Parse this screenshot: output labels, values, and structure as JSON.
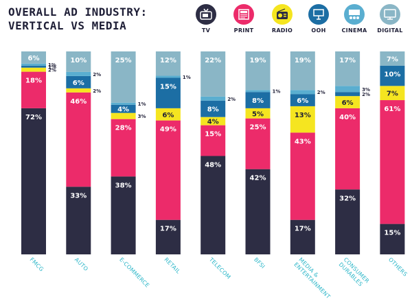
{
  "title": {
    "line1": "OVERALL AD INDUSTRY:",
    "line2": "VERTICAL VS MEDIA"
  },
  "legend": [
    {
      "label": "TV",
      "color": "#2d2d44",
      "icon": "tv-icon"
    },
    {
      "label": "PRINT",
      "color": "#ec2b6a",
      "icon": "newspaper-icon"
    },
    {
      "label": "RADIO",
      "color": "#f5e520",
      "icon": "radio-icon"
    },
    {
      "label": "OOH",
      "color": "#1c6ea4",
      "icon": "billboard-icon"
    },
    {
      "label": "CINEMA",
      "color": "#5aaed0",
      "icon": "cinema-icon"
    },
    {
      "label": "DIGITAL",
      "color": "#8ab6c6",
      "icon": "monitor-icon"
    }
  ],
  "chart_data": {
    "type": "bar",
    "stacked": true,
    "categories": [
      "FMCG",
      "AUTO",
      "E-COMMERCE",
      "RETAIL",
      "TELECOM",
      "BFSI",
      "MEDIA & ENTERTAINMENT",
      "CONSUMER DURABLES",
      "OTHERS"
    ],
    "category_lines": [
      [
        "FMCG"
      ],
      [
        "AUTO"
      ],
      [
        "E-COMMERCE"
      ],
      [
        "RETAIL"
      ],
      [
        "TELECOM"
      ],
      [
        "BFSI"
      ],
      [
        "MEDIA &",
        "ENTERTAINMENT"
      ],
      [
        "CONSUMER",
        "DURABLES"
      ],
      [
        "OTHERS"
      ]
    ],
    "series": [
      {
        "name": "TV",
        "color": "#2d2d44",
        "values": [
          72,
          33,
          38,
          17,
          48,
          42,
          17,
          32,
          15
        ]
      },
      {
        "name": "PRINT",
        "color": "#ec2b6a",
        "values": [
          18,
          46,
          28,
          49,
          15,
          25,
          43,
          40,
          61
        ]
      },
      {
        "name": "RADIO",
        "color": "#f5e520",
        "values": [
          2,
          2,
          3,
          6,
          4,
          5,
          13,
          6,
          7
        ]
      },
      {
        "name": "OOH",
        "color": "#1c6ea4",
        "values": [
          1,
          6,
          4,
          15,
          8,
          8,
          6,
          2,
          10
        ]
      },
      {
        "name": "CINEMA",
        "color": "#5aaed0",
        "values": [
          1,
          2,
          1,
          1,
          2,
          1,
          2,
          3,
          0
        ]
      },
      {
        "name": "DIGITAL",
        "color": "#8ab6c6",
        "values": [
          6,
          10,
          25,
          12,
          22,
          19,
          19,
          17,
          7
        ]
      }
    ],
    "value_suffix": "%",
    "ylim": [
      0,
      100
    ],
    "legend_position": "top-right",
    "grid": false
  }
}
